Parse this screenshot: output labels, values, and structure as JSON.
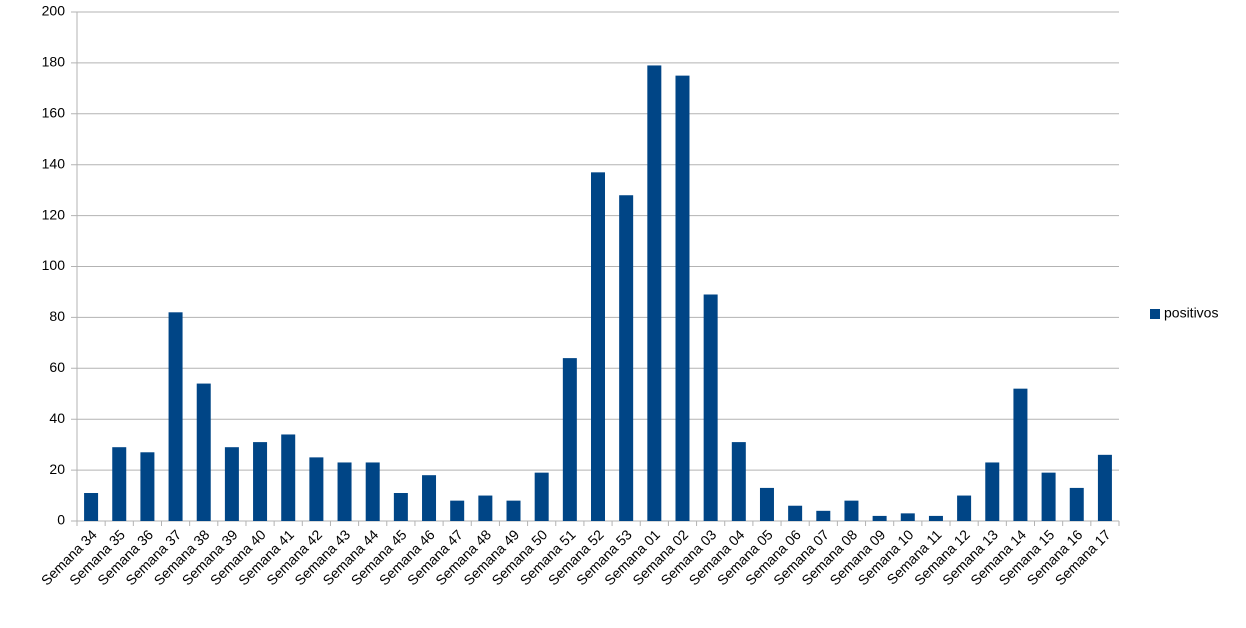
{
  "chart_data": {
    "type": "bar",
    "categories": [
      "Semana 34",
      "Semana 35",
      "Semana 36",
      "Semana 37",
      "Semana 38",
      "Semana 39",
      "Semana 40",
      "Semana 41",
      "Semana 42",
      "Semana 43",
      "Semana 44",
      "Semana 45",
      "Semana 46",
      "Semana 47",
      "Semana 48",
      "Semana 49",
      "Semana 50",
      "Semana 51",
      "Semana 52",
      "Semana 53",
      "Semana 01",
      "Semana 02",
      "Semana 03",
      "Semana 04",
      "Semana 05",
      "Semana 06",
      "Semana 07",
      "Semana 08",
      "Semana 09",
      "Semana 10",
      "Semana 11",
      "Semana 12",
      "Semana 13",
      "Semana 14",
      "Semana 15",
      "Semana 16",
      "Semana 17"
    ],
    "series": [
      {
        "name": "positivos",
        "color": "#004586",
        "values": [
          11,
          29,
          27,
          82,
          54,
          29,
          31,
          34,
          25,
          23,
          23,
          11,
          18,
          8,
          10,
          8,
          19,
          64,
          137,
          128,
          179,
          175,
          89,
          31,
          13,
          6,
          4,
          8,
          2,
          3,
          2,
          10,
          23,
          52,
          19,
          13,
          26
        ]
      }
    ],
    "ylim": [
      0,
      200
    ],
    "yticks": [
      0,
      20,
      40,
      60,
      80,
      100,
      120,
      140,
      160,
      180,
      200
    ],
    "grid": true,
    "legend": "right"
  }
}
